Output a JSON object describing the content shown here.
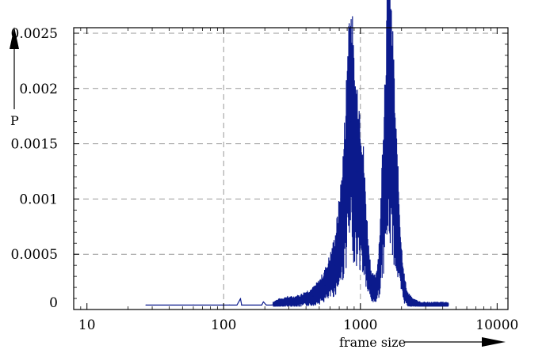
{
  "chart_data": {
    "type": "line",
    "title": "",
    "xlabel": "frame size",
    "ylabel": "P",
    "x_scale": "log",
    "xlim": [
      8,
      12000
    ],
    "ylim": [
      0,
      0.00255
    ],
    "grid": true,
    "legend": "none",
    "x_ticks": [
      {
        "value": 10,
        "label": "10"
      },
      {
        "value": 100,
        "label": "100"
      },
      {
        "value": 1000,
        "label": "1000"
      },
      {
        "value": 10000,
        "label": "10000"
      }
    ],
    "y_ticks": [
      {
        "value": 0,
        "label": "0"
      },
      {
        "value": 0.0005,
        "label": "0.0005"
      },
      {
        "value": 0.001,
        "label": "0.001"
      },
      {
        "value": 0.0015,
        "label": "0.0015"
      },
      {
        "value": 0.002,
        "label": "0.002"
      },
      {
        "value": 0.0025,
        "label": "0.0025"
      }
    ],
    "series": [
      {
        "color": "#0b1a8c",
        "x": [
          27,
          60,
          110,
          125,
          133,
          135,
          190,
          195,
          205,
          225,
          240,
          260,
          290,
          320,
          360,
          400,
          450,
          500,
          550,
          600,
          650,
          700,
          740,
          780,
          800,
          820,
          850,
          880,
          900,
          930,
          960,
          1000,
          1050,
          1100,
          1150,
          1200,
          1250,
          1300,
          1350,
          1400,
          1450,
          1500,
          1550,
          1600,
          1650,
          1700,
          1750,
          1800,
          1850,
          1900,
          1950,
          2000,
          2100,
          2200,
          2400,
          2600,
          2800,
          3000,
          3500,
          4000,
          4400
        ],
        "y": [
          4e-05,
          4e-05,
          4e-05,
          4e-05,
          0.0001,
          4e-05,
          4e-05,
          7e-05,
          4e-05,
          4e-05,
          5e-05,
          6e-05,
          7e-05,
          7e-05,
          8e-05,
          0.0001,
          0.00012,
          0.00016,
          0.00022,
          0.0003,
          0.0004,
          0.0006,
          0.0008,
          0.00115,
          0.0014,
          0.00165,
          0.0017,
          0.00155,
          0.00135,
          0.00125,
          0.00125,
          0.0011,
          0.0009,
          0.0006,
          0.00035,
          0.00022,
          0.00018,
          0.0002,
          0.0003,
          0.0005,
          0.0009,
          0.00125,
          0.0016,
          0.0019,
          0.0018,
          0.0016,
          0.0014,
          0.0011,
          0.0009,
          0.0007,
          0.0005,
          0.00035,
          0.00018,
          0.0001,
          6e-05,
          5e-05,
          4e-05,
          4e-05,
          4e-05,
          4e-05,
          4e-05
        ]
      }
    ]
  }
}
